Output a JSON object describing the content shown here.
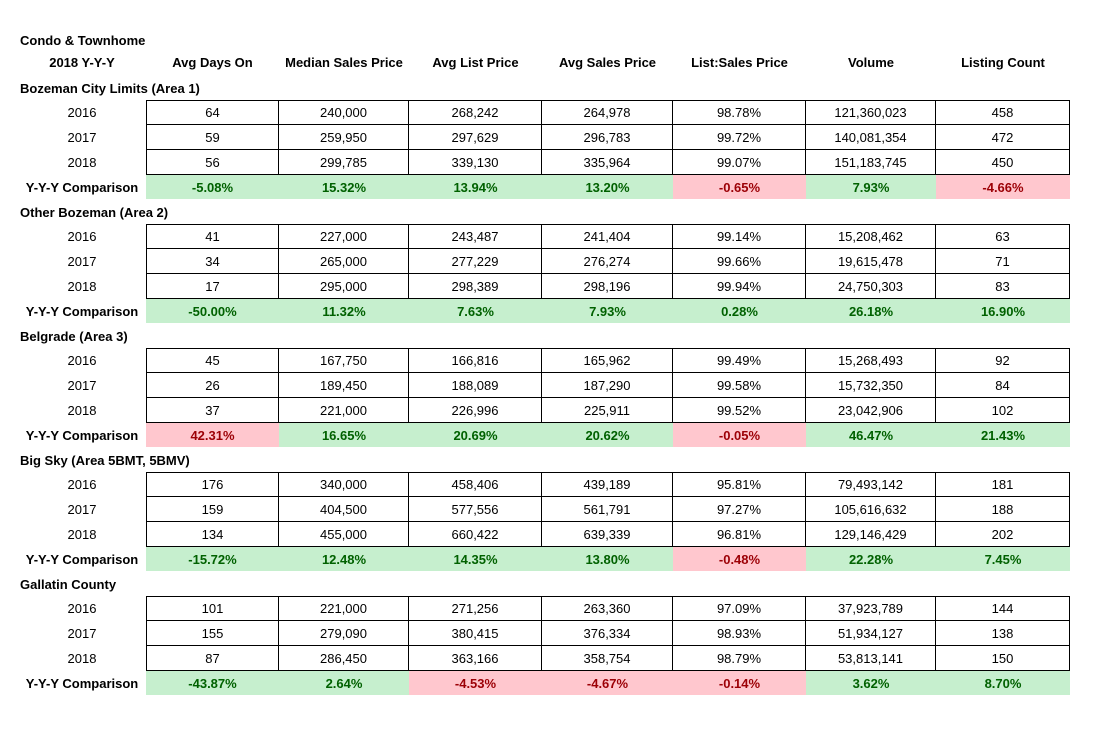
{
  "title": "Condo & Townhome",
  "subtitle": "2018 Y-Y-Y",
  "columns": [
    "Avg Days On",
    "Median Sales Price",
    "Avg List Price",
    "Avg Sales Price",
    "List:Sales Price",
    "Volume",
    "Listing Count"
  ],
  "compare_label": "Y-Y-Y Comparison",
  "colors": {
    "positive_bg": "#c6efce",
    "positive_text": "#006100",
    "negative_bg": "#ffc7ce",
    "negative_text": "#9c0006"
  },
  "sections": [
    {
      "name": "Bozeman City Limits (Area 1)",
      "rows": [
        {
          "year": "2016",
          "values": [
            "64",
            "240,000",
            "268,242",
            "264,978",
            "98.78%",
            "121,360,023",
            "458"
          ]
        },
        {
          "year": "2017",
          "values": [
            "59",
            "259,950",
            "297,629",
            "296,783",
            "99.72%",
            "140,081,354",
            "472"
          ]
        },
        {
          "year": "2018",
          "values": [
            "56",
            "299,785",
            "339,130",
            "335,964",
            "99.07%",
            "151,183,745",
            "450"
          ]
        }
      ],
      "comparison": {
        "values": [
          "-5.08%",
          "15.32%",
          "13.94%",
          "13.20%",
          "-0.65%",
          "7.93%",
          "-4.66%"
        ],
        "status": [
          "pos",
          "pos",
          "pos",
          "pos",
          "neg",
          "pos",
          "neg"
        ]
      }
    },
    {
      "name": "Other Bozeman (Area 2)",
      "rows": [
        {
          "year": "2016",
          "values": [
            "41",
            "227,000",
            "243,487",
            "241,404",
            "99.14%",
            "15,208,462",
            "63"
          ]
        },
        {
          "year": "2017",
          "values": [
            "34",
            "265,000",
            "277,229",
            "276,274",
            "99.66%",
            "19,615,478",
            "71"
          ]
        },
        {
          "year": "2018",
          "values": [
            "17",
            "295,000",
            "298,389",
            "298,196",
            "99.94%",
            "24,750,303",
            "83"
          ]
        }
      ],
      "comparison": {
        "values": [
          "-50.00%",
          "11.32%",
          "7.63%",
          "7.93%",
          "0.28%",
          "26.18%",
          "16.90%"
        ],
        "status": [
          "pos",
          "pos",
          "pos",
          "pos",
          "pos",
          "pos",
          "pos"
        ]
      }
    },
    {
      "name": "Belgrade (Area 3)",
      "rows": [
        {
          "year": "2016",
          "values": [
            "45",
            "167,750",
            "166,816",
            "165,962",
            "99.49%",
            "15,268,493",
            "92"
          ]
        },
        {
          "year": "2017",
          "values": [
            "26",
            "189,450",
            "188,089",
            "187,290",
            "99.58%",
            "15,732,350",
            "84"
          ]
        },
        {
          "year": "2018",
          "values": [
            "37",
            "221,000",
            "226,996",
            "225,911",
            "99.52%",
            "23,042,906",
            "102"
          ]
        }
      ],
      "comparison": {
        "values": [
          "42.31%",
          "16.65%",
          "20.69%",
          "20.62%",
          "-0.05%",
          "46.47%",
          "21.43%"
        ],
        "status": [
          "neg",
          "pos",
          "pos",
          "pos",
          "neg",
          "pos",
          "pos"
        ]
      }
    },
    {
      "name": "Big Sky (Area 5BMT, 5BMV)",
      "rows": [
        {
          "year": "2016",
          "values": [
            "176",
            "340,000",
            "458,406",
            "439,189",
            "95.81%",
            "79,493,142",
            "181"
          ]
        },
        {
          "year": "2017",
          "values": [
            "159",
            "404,500",
            "577,556",
            "561,791",
            "97.27%",
            "105,616,632",
            "188"
          ]
        },
        {
          "year": "2018",
          "values": [
            "134",
            "455,000",
            "660,422",
            "639,339",
            "96.81%",
            "129,146,429",
            "202"
          ]
        }
      ],
      "comparison": {
        "values": [
          "-15.72%",
          "12.48%",
          "14.35%",
          "13.80%",
          "-0.48%",
          "22.28%",
          "7.45%"
        ],
        "status": [
          "pos",
          "pos",
          "pos",
          "pos",
          "neg",
          "pos",
          "pos"
        ]
      }
    },
    {
      "name": "Gallatin County",
      "rows": [
        {
          "year": "2016",
          "values": [
            "101",
            "221,000",
            "271,256",
            "263,360",
            "97.09%",
            "37,923,789",
            "144"
          ]
        },
        {
          "year": "2017",
          "values": [
            "155",
            "279,090",
            "380,415",
            "376,334",
            "98.93%",
            "51,934,127",
            "138"
          ]
        },
        {
          "year": "2018",
          "values": [
            "87",
            "286,450",
            "363,166",
            "358,754",
            "98.79%",
            "53,813,141",
            "150"
          ]
        }
      ],
      "comparison": {
        "values": [
          "-43.87%",
          "2.64%",
          "-4.53%",
          "-4.67%",
          "-0.14%",
          "3.62%",
          "8.70%"
        ],
        "status": [
          "pos",
          "pos",
          "neg",
          "neg",
          "neg",
          "pos",
          "pos"
        ]
      }
    }
  ]
}
